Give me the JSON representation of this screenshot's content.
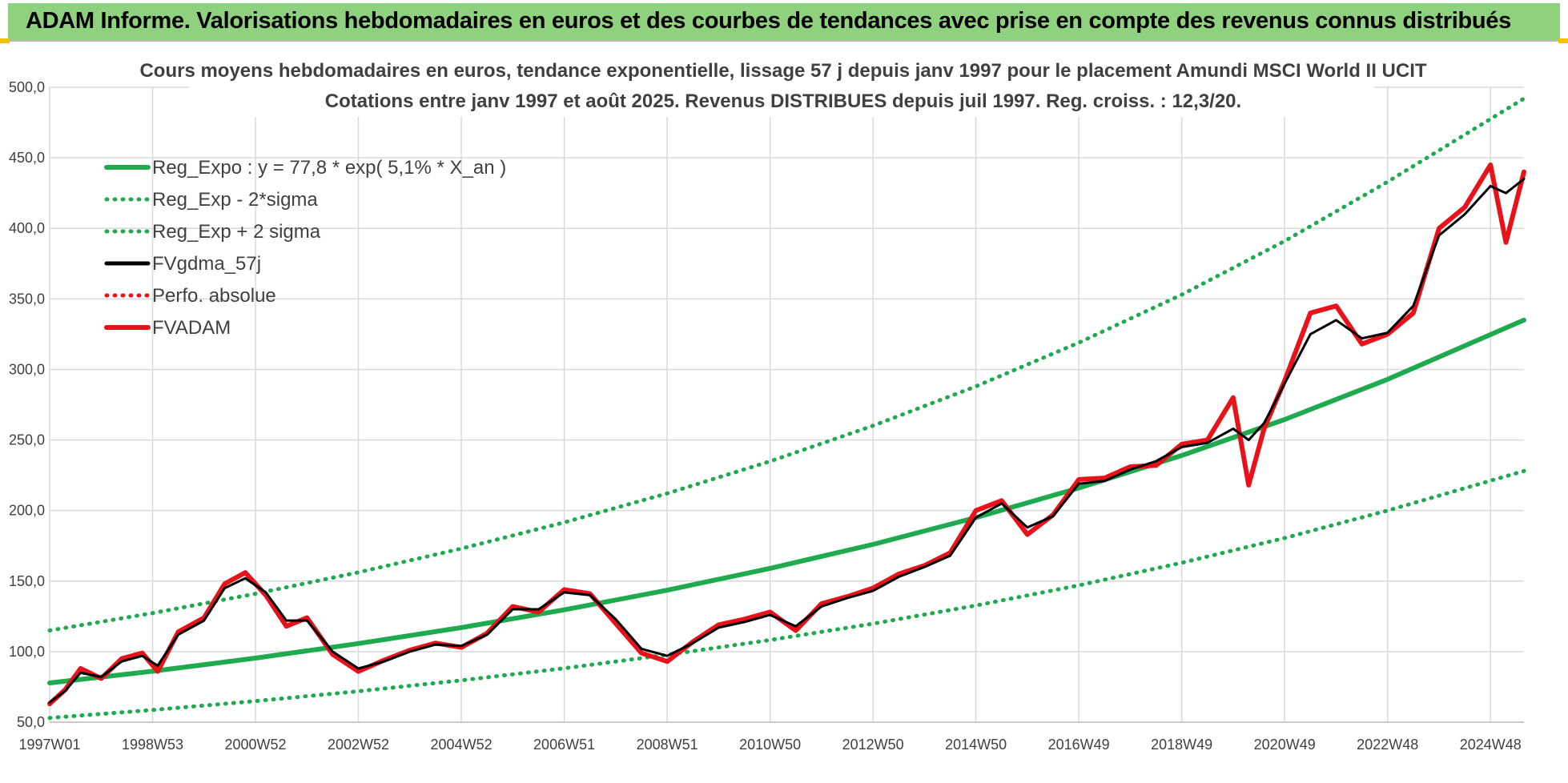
{
  "banner": {
    "title": "ADAM Informe. Valorisations hebdomadaires en euros et des courbes de tendances avec prise en compte des revenus connus distribués",
    "background": "#8fd17f"
  },
  "chart_data": {
    "type": "line",
    "title": "Cours moyens hebdomadaires en euros, tendance exponentielle, lissage 57 j depuis janv 1997 pour le placement Amundi MSCI World II UCIT",
    "subtitle": "Cotations entre janv 1997 et août 2025.  Revenus DISTRIBUES depuis juil 1997.  Reg. croiss. : 12,3/20.",
    "xlabel": "",
    "ylabel": "",
    "ylim": [
      50,
      500
    ],
    "xlim": [
      1997.0,
      2025.65
    ],
    "grid": true,
    "legend_position": "top-left",
    "y_ticks": [
      "500,0",
      "450,0",
      "400,0",
      "350,0",
      "300,0",
      "250,0",
      "200,0",
      "150,0",
      "100,0",
      "50,0"
    ],
    "x_ticks": [
      {
        "label": "1997W01",
        "x": 1997.0
      },
      {
        "label": "1998W53",
        "x": 1999.0
      },
      {
        "label": "2000W52",
        "x": 2001.0
      },
      {
        "label": "2002W52",
        "x": 2003.0
      },
      {
        "label": "2004W52",
        "x": 2005.0
      },
      {
        "label": "2006W51",
        "x": 2007.0
      },
      {
        "label": "2008W51",
        "x": 2009.0
      },
      {
        "label": "2010W50",
        "x": 2011.0
      },
      {
        "label": "2012W50",
        "x": 2013.0
      },
      {
        "label": "2014W50",
        "x": 2015.0
      },
      {
        "label": "2016W49",
        "x": 2017.0
      },
      {
        "label": "2018W49",
        "x": 2019.0
      },
      {
        "label": "2020W49",
        "x": 2021.0
      },
      {
        "label": "2022W48",
        "x": 2023.0
      },
      {
        "label": "2024W48",
        "x": 2025.0
      }
    ],
    "series": [
      {
        "name": "Reg_Expo : y = 77,8 * exp( 5,1% *  X_an )",
        "color": "#1faa4f",
        "style": "solid-thick",
        "x": [
          1997.0,
          1999.0,
          2001.0,
          2003.0,
          2005.0,
          2007.0,
          2009.0,
          2011.0,
          2013.0,
          2015.0,
          2017.0,
          2019.0,
          2021.0,
          2023.0,
          2025.65
        ],
        "values": [
          77.8,
          86.1,
          95.4,
          105.7,
          117.0,
          129.6,
          143.5,
          159,
          176,
          195,
          216,
          239,
          264.5,
          293,
          335
        ]
      },
      {
        "name": "Reg_Exp - 2*sigma",
        "color": "#1faa4f",
        "style": "dotted",
        "x": [
          1997.0,
          1999.0,
          2001.0,
          2003.0,
          2005.0,
          2007.0,
          2009.0,
          2011.0,
          2013.0,
          2015.0,
          2017.0,
          2019.0,
          2021.0,
          2023.0,
          2025.65
        ],
        "values": [
          53,
          58.6,
          64.9,
          71.9,
          79.6,
          88.2,
          97.7,
          108.2,
          119.8,
          132.7,
          147,
          163,
          180.5,
          200,
          228
        ]
      },
      {
        "name": "Reg_Exp + 2 sigma",
        "color": "#1faa4f",
        "style": "dotted",
        "x": [
          1997.0,
          1999.0,
          2001.0,
          2003.0,
          2005.0,
          2007.0,
          2009.0,
          2011.0,
          2013.0,
          2015.0,
          2017.0,
          2019.0,
          2021.0,
          2023.0,
          2025.65
        ],
        "values": [
          115,
          127.3,
          141,
          156.2,
          173,
          191.6,
          212.1,
          234.9,
          260.1,
          288,
          319,
          353,
          391,
          433,
          492
        ]
      },
      {
        "name": "FVgdma_57j",
        "color": "#000000",
        "style": "solid",
        "x": [
          1997.0,
          1997.3,
          1997.6,
          1998.0,
          1998.4,
          1998.8,
          1999.1,
          1999.5,
          2000.0,
          2000.4,
          2000.8,
          2001.2,
          2001.6,
          2002.0,
          2002.5,
          2003.0,
          2003.5,
          2004.0,
          2004.5,
          2005.0,
          2005.5,
          2006.0,
          2006.5,
          2007.0,
          2007.5,
          2008.0,
          2008.5,
          2009.0,
          2009.5,
          2010.0,
          2010.5,
          2011.0,
          2011.5,
          2012.0,
          2012.5,
          2013.0,
          2013.5,
          2014.0,
          2014.5,
          2015.0,
          2015.5,
          2016.0,
          2016.5,
          2017.0,
          2017.5,
          2018.0,
          2018.5,
          2019.0,
          2019.5,
          2020.0,
          2020.3,
          2020.6,
          2021.0,
          2021.5,
          2022.0,
          2022.5,
          2023.0,
          2023.5,
          2024.0,
          2024.5,
          2025.0,
          2025.3,
          2025.65
        ],
        "values": [
          64,
          72,
          85,
          82,
          93,
          97,
          90,
          112,
          122,
          145,
          152,
          142,
          122,
          122,
          100,
          88,
          93,
          100,
          105,
          104,
          112,
          130,
          130,
          142,
          140,
          123,
          102,
          97,
          106,
          117,
          121,
          126,
          118,
          132,
          138,
          143,
          153,
          160,
          168,
          195,
          205,
          188,
          196,
          219,
          221,
          229,
          235,
          245,
          248,
          258,
          250,
          262,
          290,
          325,
          335,
          322,
          326,
          345,
          395,
          410,
          430,
          425,
          435
        ]
      },
      {
        "name": "Perfo. absolue",
        "color": "#e8121b",
        "style": "dotted",
        "x": [
          1997.0,
          1997.3,
          1997.6,
          1998.0,
          1998.4,
          1998.8,
          1999.1,
          1999.5,
          2000.0,
          2000.4,
          2000.8,
          2001.2,
          2001.6,
          2002.0,
          2002.5,
          2003.0,
          2003.5,
          2004.0,
          2004.5,
          2005.0,
          2005.5,
          2006.0,
          2006.5,
          2007.0,
          2007.5,
          2008.0,
          2008.5,
          2009.0,
          2009.5,
          2010.0,
          2010.5,
          2011.0,
          2011.5,
          2012.0,
          2012.5,
          2013.0,
          2013.5,
          2014.0,
          2014.5,
          2015.0,
          2015.5,
          2016.0,
          2016.5,
          2017.0,
          2017.5,
          2018.0,
          2018.5,
          2019.0,
          2019.5,
          2020.0,
          2020.3,
          2020.6,
          2021.0,
          2021.5,
          2022.0,
          2022.5,
          2023.0,
          2023.5,
          2024.0,
          2024.5,
          2025.0,
          2025.3,
          2025.65
        ],
        "values": [
          63,
          73,
          88,
          81,
          95,
          99,
          86,
          114,
          124,
          148,
          156,
          140,
          118,
          124,
          98,
          86,
          94,
          101,
          106,
          103,
          113,
          132,
          128,
          144,
          141,
          120,
          99,
          93,
          107,
          119,
          123,
          128,
          115,
          134,
          139,
          145,
          155,
          161,
          170,
          200,
          207,
          183,
          197,
          222,
          223,
          231,
          232,
          247,
          250,
          280,
          218,
          258,
          292,
          340,
          345,
          318,
          325,
          340,
          400,
          415,
          445,
          390,
          440
        ]
      },
      {
        "name": "FVADAM",
        "color": "#e8121b",
        "style": "solid-thick",
        "x": [
          1997.0,
          1997.3,
          1997.6,
          1998.0,
          1998.4,
          1998.8,
          1999.1,
          1999.5,
          2000.0,
          2000.4,
          2000.8,
          2001.2,
          2001.6,
          2002.0,
          2002.5,
          2003.0,
          2003.5,
          2004.0,
          2004.5,
          2005.0,
          2005.5,
          2006.0,
          2006.5,
          2007.0,
          2007.5,
          2008.0,
          2008.5,
          2009.0,
          2009.5,
          2010.0,
          2010.5,
          2011.0,
          2011.5,
          2012.0,
          2012.5,
          2013.0,
          2013.5,
          2014.0,
          2014.5,
          2015.0,
          2015.5,
          2016.0,
          2016.5,
          2017.0,
          2017.5,
          2018.0,
          2018.5,
          2019.0,
          2019.5,
          2020.0,
          2020.3,
          2020.6,
          2021.0,
          2021.5,
          2022.0,
          2022.5,
          2023.0,
          2023.5,
          2024.0,
          2024.5,
          2025.0,
          2025.3,
          2025.65
        ],
        "values": [
          63,
          73,
          88,
          81,
          95,
          99,
          86,
          114,
          124,
          148,
          156,
          140,
          118,
          124,
          98,
          86,
          94,
          101,
          106,
          103,
          113,
          132,
          128,
          144,
          141,
          120,
          99,
          93,
          107,
          119,
          123,
          128,
          115,
          134,
          139,
          145,
          155,
          161,
          170,
          200,
          207,
          183,
          197,
          222,
          223,
          231,
          232,
          247,
          250,
          280,
          218,
          258,
          292,
          340,
          345,
          318,
          325,
          340,
          400,
          415,
          445,
          390,
          440
        ]
      }
    ]
  }
}
